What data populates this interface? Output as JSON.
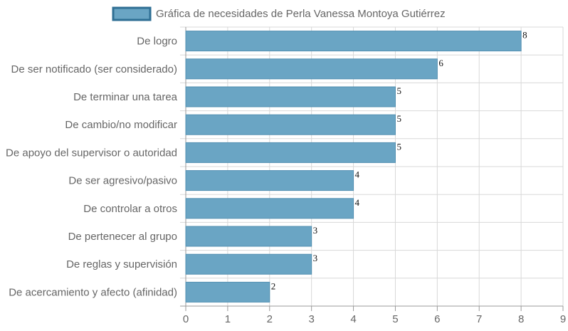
{
  "chart_data": {
    "type": "bar",
    "orientation": "horizontal",
    "categories": [
      "De logro",
      "De ser notificado (ser considerado)",
      "De terminar una tarea",
      "De cambio/no modificar",
      "De apoyo del supervisor o autoridad",
      "De ser agresivo/pasivo",
      "De controlar a otros",
      "De pertenecer al grupo",
      "De reglas y supervisión",
      "De acercamiento y afecto (afinidad)"
    ],
    "series": [
      {
        "name": "Gráfica de necesidades de Perla Vanessa Montoya Gutiérrez",
        "values": [
          8,
          6,
          5,
          5,
          5,
          4,
          4,
          3,
          3,
          2
        ]
      }
    ],
    "xlim": [
      0,
      9
    ],
    "x_ticks": [
      "0",
      "1",
      "2",
      "3",
      "4",
      "5",
      "6",
      "7",
      "8",
      "9"
    ],
    "data_labels": [
      "8",
      "6",
      "5",
      "5",
      "5",
      "4",
      "4",
      "3",
      "3",
      "2"
    ],
    "grid": true,
    "legend_position": "top",
    "colors": {
      "bar_fill": "#6aa5c4",
      "bar_stroke": "#5390b2",
      "legend_fill": "#6aa5c4",
      "legend_stroke": "#2f6f94",
      "grid": "#d8d8d8",
      "axis": "#999999",
      "text": "#666666",
      "data_label": "#111111"
    }
  }
}
